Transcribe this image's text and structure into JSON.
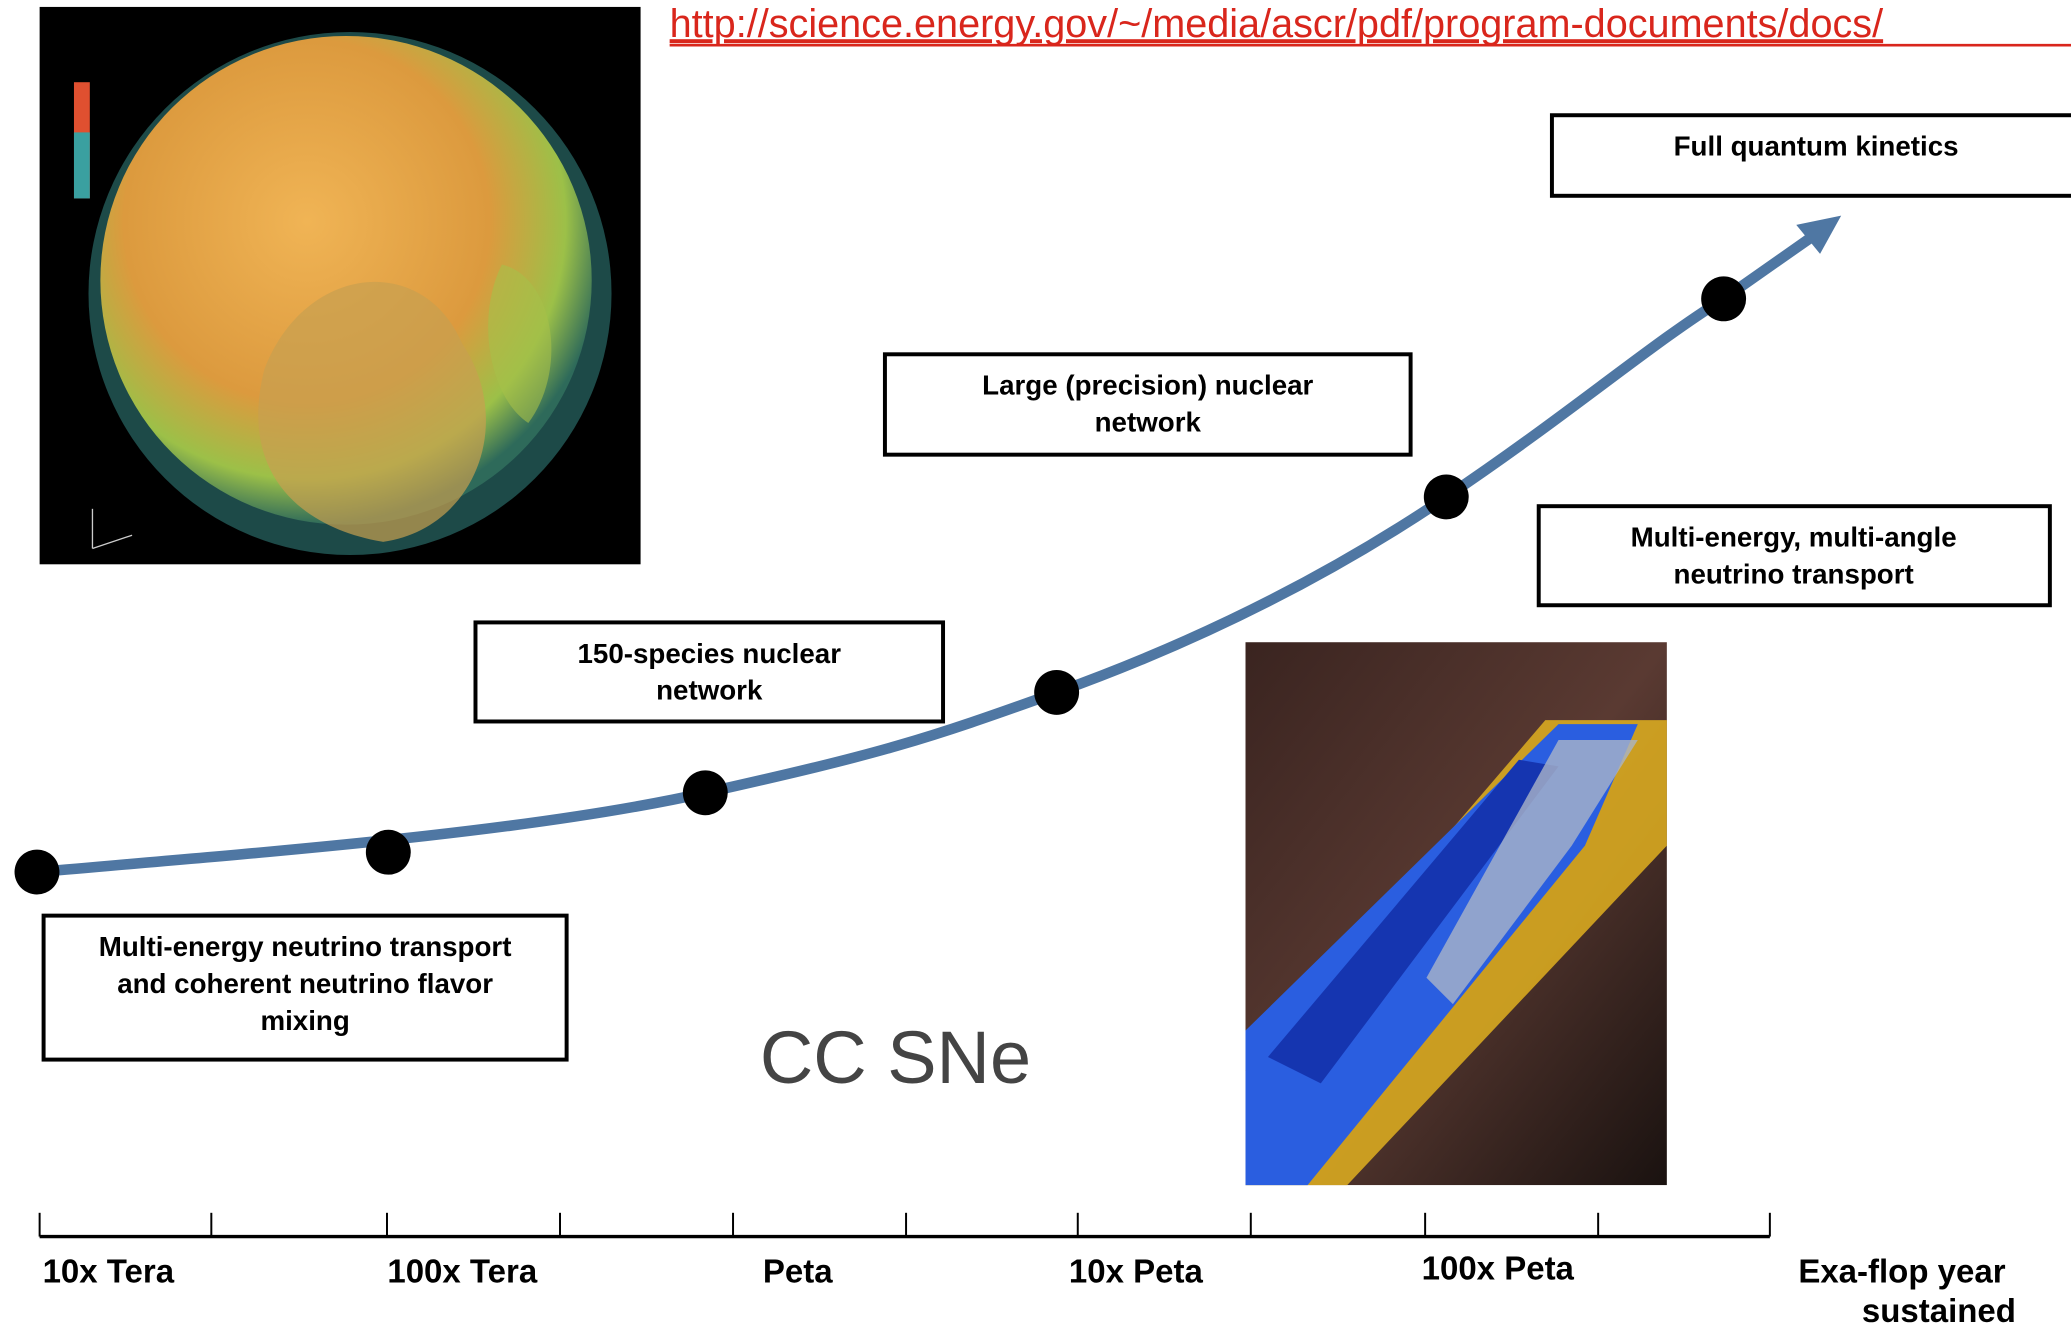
{
  "link": "http://science.energy.gov/~/media/ascr/pdf/program-documents/docs/",
  "title": "CC SNe",
  "milestones": [
    {
      "lines": [
        "Full quantum kinetics"
      ]
    },
    {
      "lines": [
        "Large (precision) nuclear",
        "network"
      ]
    },
    {
      "lines": [
        "Multi-energy, multi-angle",
        "neutrino transport"
      ]
    },
    {
      "lines": [
        "150-species nuclear",
        "network"
      ]
    },
    {
      "lines": [
        "Multi-energy neutrino transport",
        "and coherent neutrino flavor",
        "mixing"
      ]
    }
  ],
  "axis_labels": [
    {
      "lines": [
        "10x Tera"
      ]
    },
    {
      "lines": [
        "100x Tera"
      ]
    },
    {
      "lines": [
        "Peta"
      ]
    },
    {
      "lines": [
        "10x Peta"
      ]
    },
    {
      "lines": [
        "100x Peta"
      ]
    },
    {
      "lines": [
        "Exa-flop year",
        "sustained"
      ]
    }
  ]
}
